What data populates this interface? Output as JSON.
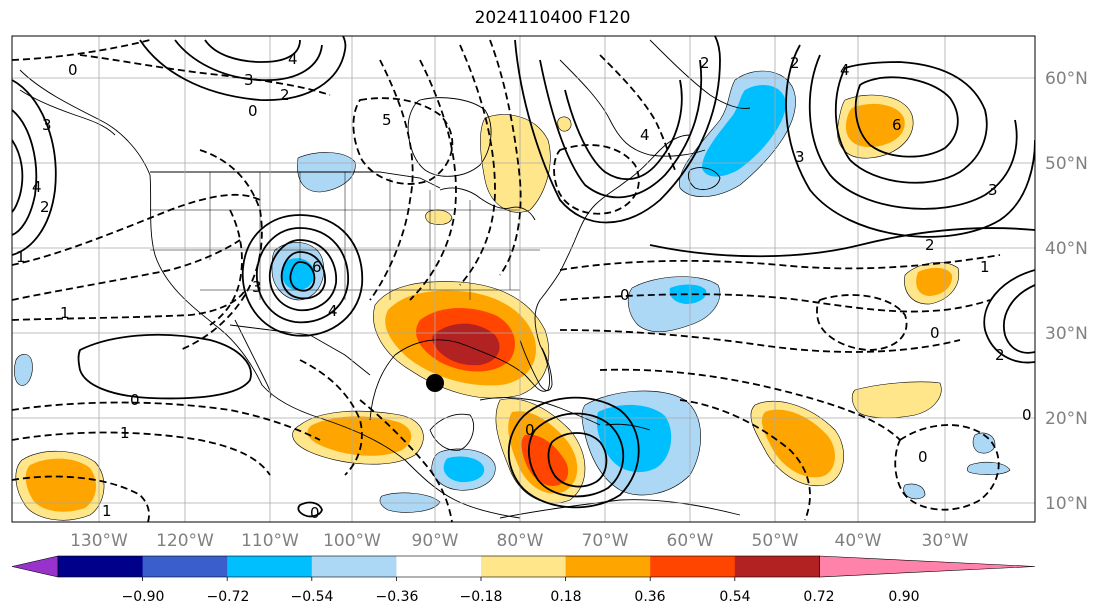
{
  "title": "2024110400 F120",
  "map": {
    "lon_ticks": [
      "130°W",
      "120°W",
      "110°W",
      "100°W",
      "90°W",
      "80°W",
      "70°W",
      "60°W",
      "50°W",
      "40°W",
      "30°W"
    ],
    "lat_ticks": [
      "60°N",
      "50°N",
      "40°N",
      "30°N",
      "20°N",
      "10°N"
    ],
    "contour_labels": [
      "4",
      "3",
      "2",
      "0",
      "4",
      "5",
      "3",
      "2",
      "4",
      "6",
      "3",
      "6",
      "0",
      "1",
      "0",
      "1",
      "1",
      "0",
      "0",
      "2",
      "2",
      "2",
      "0",
      "0",
      "3",
      "1",
      "4",
      "4",
      "5",
      "0",
      "1",
      "6"
    ],
    "point_marker": {
      "lon": -89.5,
      "lat": 24.0
    }
  },
  "colorbar": {
    "tick_labels": [
      "−0.90",
      "−0.72",
      "−0.54",
      "−0.36",
      "−0.18",
      "0.18",
      "0.36",
      "0.54",
      "0.72",
      "0.90"
    ],
    "colors": [
      "#9932cc",
      "#00008b",
      "#3a5fcd",
      "#00bfff",
      "#add8f5",
      "#ffffff",
      "#ffe68a",
      "#ffa500",
      "#ff4500",
      "#b22222",
      "#ff82ab"
    ]
  },
  "colors": {
    "land_outline": "#000000",
    "grid": "#aaaaaa",
    "tick_text": "#808080"
  }
}
